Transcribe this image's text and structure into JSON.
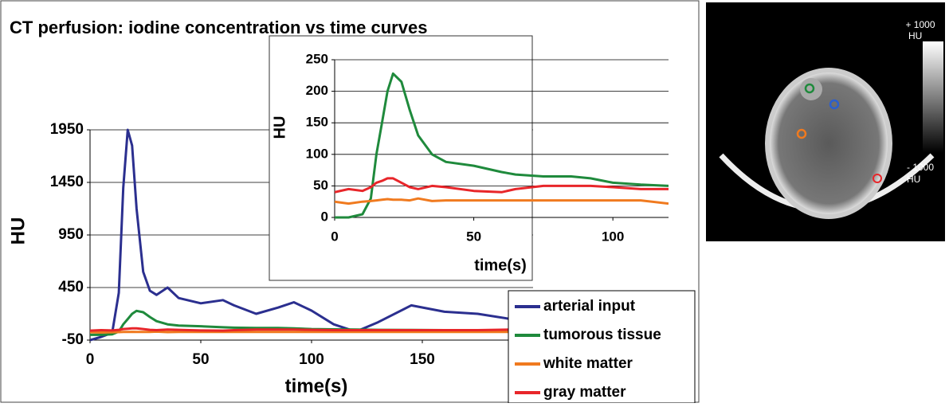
{
  "chart_data": [
    {
      "type": "line",
      "title": "CT perfusion: iodine concentration vs time curves",
      "x_label": "time(s)",
      "y_label": "HU",
      "x": [
        0,
        5,
        10,
        13,
        15,
        17,
        19,
        21,
        24,
        27,
        30,
        35,
        40,
        50,
        60,
        65,
        75,
        85,
        92,
        100,
        110,
        120,
        130,
        145,
        160,
        175,
        190
      ],
      "series": [
        {
          "name": "arterial input",
          "color": "#2b2f8f",
          "values": [
            -50,
            -20,
            20,
            400,
            1400,
            1950,
            1800,
            1200,
            600,
            420,
            380,
            450,
            350,
            300,
            330,
            280,
            200,
            260,
            310,
            230,
            100,
            30,
            120,
            280,
            220,
            200,
            150
          ]
        },
        {
          "name": "tumorous tissue",
          "color": "#1f8a3c",
          "values": [
            0,
            0,
            5,
            30,
            100,
            150,
            200,
            228,
            215,
            170,
            130,
            100,
            88,
            82,
            72,
            68,
            65,
            65,
            62,
            55,
            52,
            50,
            48,
            46,
            45,
            44,
            44
          ]
        },
        {
          "name": "white matter",
          "color": "#f07a1f",
          "values": [
            25,
            22,
            25,
            26,
            27,
            28,
            29,
            28,
            28,
            27,
            30,
            26,
            27,
            27,
            27,
            27,
            27,
            27,
            27,
            27,
            27,
            27,
            27,
            27,
            27,
            27,
            27
          ]
        },
        {
          "name": "gray matter",
          "color": "#e8262a",
          "values": [
            40,
            45,
            42,
            48,
            55,
            58,
            62,
            62,
            55,
            48,
            45,
            50,
            48,
            42,
            40,
            45,
            50,
            50,
            50,
            48,
            45,
            45,
            45,
            45,
            45,
            45,
            50
          ]
        }
      ],
      "xlim": [
        0,
        200
      ],
      "xticks": [
        0,
        50,
        100,
        150
      ],
      "ylim": [
        -50,
        1950
      ],
      "yticks": [
        -50,
        450,
        950,
        1450,
        1950
      ],
      "grid": true,
      "legend": "lower right"
    },
    {
      "type": "line",
      "x_label": "time(s)",
      "y_label": "HU",
      "x": [
        0,
        5,
        10,
        13,
        15,
        17,
        19,
        21,
        24,
        27,
        30,
        35,
        40,
        50,
        60,
        65,
        75,
        85,
        92,
        100,
        110,
        120
      ],
      "series": [
        {
          "name": "tumorous tissue",
          "color": "#1f8a3c",
          "values": [
            0,
            0,
            5,
            30,
            100,
            150,
            200,
            228,
            215,
            170,
            130,
            100,
            88,
            82,
            72,
            68,
            65,
            65,
            62,
            55,
            52,
            50
          ]
        },
        {
          "name": "white matter",
          "color": "#f07a1f",
          "values": [
            25,
            22,
            25,
            26,
            27,
            28,
            29,
            28,
            28,
            27,
            30,
            26,
            27,
            27,
            27,
            27,
            27,
            27,
            27,
            27,
            27,
            22
          ]
        },
        {
          "name": "gray matter",
          "color": "#e8262a",
          "values": [
            40,
            45,
            42,
            48,
            55,
            58,
            62,
            62,
            55,
            48,
            45,
            50,
            48,
            42,
            40,
            45,
            50,
            50,
            50,
            48,
            45,
            45
          ]
        }
      ],
      "xlim": [
        0,
        120
      ],
      "xticks": [
        0,
        50,
        100
      ],
      "ylim": [
        0,
        250
      ],
      "yticks": [
        0,
        50,
        100,
        150,
        200,
        250
      ],
      "grid": true
    }
  ],
  "image": {
    "scale_max": "+ 1000",
    "scale_max_unit": "HU",
    "scale_min": "- 1000",
    "scale_min_unit": "HU"
  }
}
